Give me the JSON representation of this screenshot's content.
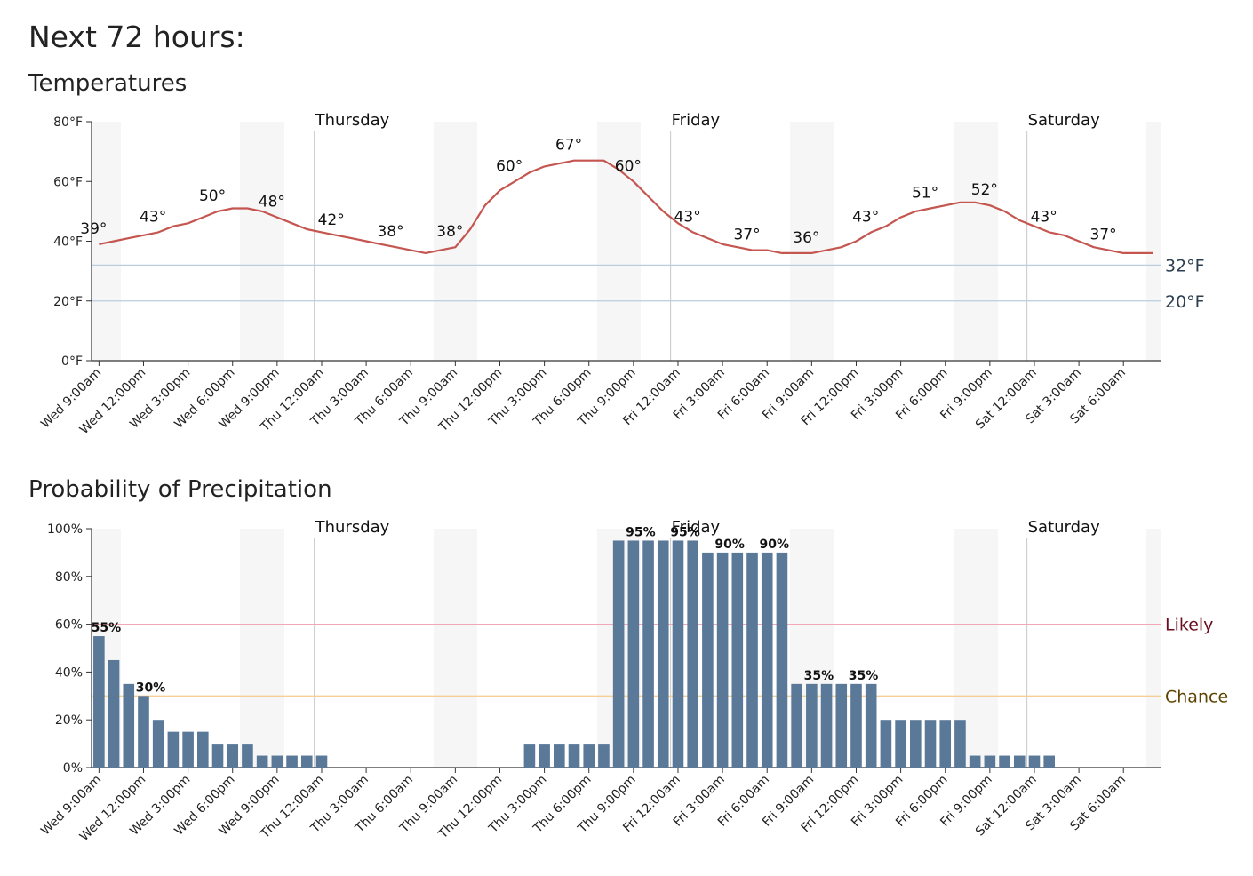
{
  "title": "Next 72 hours:",
  "chart_data": [
    {
      "type": "line",
      "title": "Temperatures",
      "categories": [
        "Wed 9:00am",
        null,
        null,
        "Wed 12:00pm",
        null,
        null,
        "Wed 3:00pm",
        null,
        null,
        "Wed 6:00pm",
        null,
        null,
        "Wed 9:00pm",
        null,
        null,
        "Thu 12:00am",
        null,
        null,
        "Thu 3:00am",
        null,
        null,
        "Thu 6:00am",
        null,
        null,
        "Thu 9:00am",
        null,
        null,
        "Thu 12:00pm",
        null,
        null,
        "Thu 3:00pm",
        null,
        null,
        "Thu 6:00pm",
        null,
        null,
        "Thu 9:00pm",
        null,
        null,
        "Fri 12:00am",
        null,
        null,
        "Fri 3:00am",
        null,
        null,
        "Fri 6:00am",
        null,
        null,
        "Fri 9:00am",
        null,
        null,
        "Fri 12:00pm",
        null,
        null,
        "Fri 3:00pm",
        null,
        null,
        "Fri 6:00pm",
        null,
        null,
        "Fri 9:00pm",
        null,
        null,
        "Sat 12:00am",
        null,
        null,
        "Sat 3:00am",
        null,
        null,
        "Sat 6:00am",
        null,
        null
      ],
      "days": [
        "Thursday",
        "Friday",
        "Saturday"
      ],
      "values": [
        39,
        40,
        41,
        42,
        43,
        45,
        46,
        48,
        50,
        51,
        51,
        50,
        48,
        46,
        44,
        43,
        42,
        41,
        40,
        39,
        38,
        37,
        36,
        37,
        38,
        44,
        52,
        57,
        60,
        63,
        65,
        66,
        67,
        67,
        67,
        64,
        60,
        55,
        50,
        46,
        43,
        41,
        39,
        38,
        37,
        37,
        36,
        36,
        36,
        37,
        38,
        40,
        43,
        45,
        48,
        50,
        51,
        52,
        53,
        53,
        52,
        50,
        47,
        45,
        43,
        42,
        40,
        38,
        37,
        36,
        36,
        36
      ],
      "value_labels": [
        "39°",
        null,
        null,
        null,
        "43°",
        null,
        null,
        null,
        "50°",
        null,
        null,
        null,
        "48°",
        null,
        null,
        null,
        "42°",
        null,
        null,
        null,
        "38°",
        null,
        null,
        null,
        "38°",
        null,
        null,
        null,
        "60°",
        null,
        null,
        null,
        "67°",
        null,
        null,
        null,
        "60°",
        null,
        null,
        null,
        "43°",
        null,
        null,
        null,
        "37°",
        null,
        null,
        null,
        "36°",
        null,
        null,
        null,
        "43°",
        null,
        null,
        null,
        "51°",
        null,
        null,
        null,
        "52°",
        null,
        null,
        null,
        "43°",
        null,
        null,
        null,
        "37°",
        null,
        null,
        null
      ],
      "color": "#c4554f",
      "ylim": [
        0,
        80
      ],
      "yticks": [
        {
          "value": 0,
          "label": "0°F"
        },
        {
          "value": 20,
          "label": "20°F"
        },
        {
          "value": 40,
          "label": "40°F"
        },
        {
          "value": 60,
          "label": "60°F"
        },
        {
          "value": 80,
          "label": "80°F"
        }
      ],
      "reference_lines": [
        {
          "value": 32,
          "label": "32°F",
          "color": "#b9cde0",
          "label_color": "#2c3e50"
        },
        {
          "value": 20,
          "label": "20°F",
          "color": "#b9cde0",
          "label_color": "#2c3e50"
        }
      ]
    },
    {
      "type": "bar",
      "title": "Probability of Precipitation",
      "categories": [
        "Wed 9:00am",
        null,
        null,
        "Wed 12:00pm",
        null,
        null,
        "Wed 3:00pm",
        null,
        null,
        "Wed 6:00pm",
        null,
        null,
        "Wed 9:00pm",
        null,
        null,
        "Thu 12:00am",
        null,
        null,
        "Thu 3:00am",
        null,
        null,
        "Thu 6:00am",
        null,
        null,
        "Thu 9:00am",
        null,
        null,
        "Thu 12:00pm",
        null,
        null,
        "Thu 3:00pm",
        null,
        null,
        "Thu 6:00pm",
        null,
        null,
        "Thu 9:00pm",
        null,
        null,
        "Fri 12:00am",
        null,
        null,
        "Fri 3:00am",
        null,
        null,
        "Fri 6:00am",
        null,
        null,
        "Fri 9:00am",
        null,
        null,
        "Fri 12:00pm",
        null,
        null,
        "Fri 3:00pm",
        null,
        null,
        "Fri 6:00pm",
        null,
        null,
        "Fri 9:00pm",
        null,
        null,
        "Sat 12:00am",
        null,
        null,
        "Sat 3:00am",
        null,
        null,
        "Sat 6:00am",
        null,
        null
      ],
      "days": [
        "Thursday",
        "Friday",
        "Saturday"
      ],
      "values": [
        55,
        45,
        35,
        30,
        20,
        15,
        15,
        15,
        10,
        10,
        10,
        5,
        5,
        5,
        5,
        5,
        0,
        0,
        0,
        0,
        0,
        0,
        0,
        0,
        0,
        0,
        0,
        0,
        0,
        10,
        10,
        10,
        10,
        10,
        10,
        95,
        95,
        95,
        95,
        95,
        95,
        90,
        90,
        90,
        90,
        90,
        90,
        35,
        35,
        35,
        35,
        35,
        35,
        20,
        20,
        20,
        20,
        20,
        20,
        5,
        5,
        5,
        5,
        5,
        5,
        0,
        0,
        0,
        0,
        0,
        0,
        0
      ],
      "value_labels": [
        "55%",
        null,
        null,
        "30%",
        null,
        null,
        null,
        null,
        null,
        null,
        null,
        null,
        null,
        null,
        null,
        null,
        null,
        null,
        null,
        null,
        null,
        null,
        null,
        null,
        null,
        null,
        null,
        null,
        null,
        null,
        null,
        null,
        null,
        null,
        null,
        null,
        "95%",
        null,
        null,
        "95%",
        null,
        null,
        "90%",
        null,
        null,
        "90%",
        null,
        null,
        "35%",
        null,
        null,
        "35%",
        null,
        null,
        null,
        null,
        null,
        null,
        null,
        null,
        null,
        null,
        null,
        null,
        null,
        null,
        null,
        null,
        null,
        null,
        null,
        null
      ],
      "color": "#5a7898",
      "ylim": [
        0,
        100
      ],
      "yticks": [
        {
          "value": 0,
          "label": "0%"
        },
        {
          "value": 20,
          "label": "20%"
        },
        {
          "value": 40,
          "label": "40%"
        },
        {
          "value": 60,
          "label": "60%"
        },
        {
          "value": 80,
          "label": "80%"
        },
        {
          "value": 100,
          "label": "100%"
        }
      ],
      "reference_lines": [
        {
          "value": 60,
          "label": "Likely",
          "color": "#f2a9b5",
          "label_color": "#6b0d1e"
        },
        {
          "value": 30,
          "label": "Chance",
          "color": "#f6cf95",
          "label_color": "#5e4300"
        }
      ]
    }
  ]
}
